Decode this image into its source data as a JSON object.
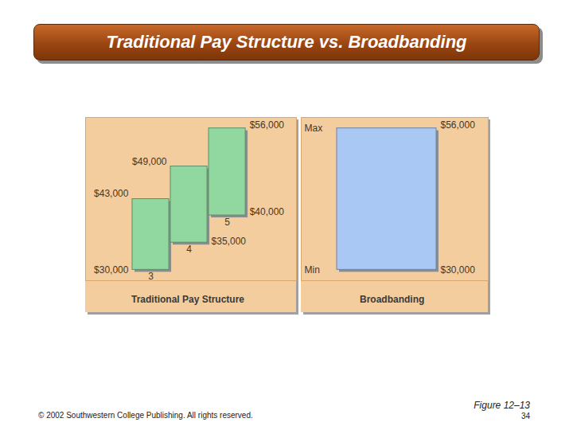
{
  "title": "Traditional Pay Structure vs. Broadbanding",
  "footer": "© 2002 Southwestern College Publishing. All rights reserved.",
  "figure": "Figure 12–13",
  "page": "34",
  "chart_data": [
    {
      "type": "range_bar",
      "title": "Traditional Pay Structure",
      "categories": [
        "3",
        "4",
        "5"
      ],
      "low": [
        30000,
        35000,
        40000
      ],
      "high": [
        43000,
        49000,
        56000
      ],
      "low_labels": [
        "$30,000",
        "$35,000",
        "$40,000"
      ],
      "high_labels": [
        "$43,000",
        "$49,000",
        "$56,000"
      ],
      "color": "#90d8a0",
      "ylim": [
        28000,
        58000
      ]
    },
    {
      "type": "range_bar",
      "title": "Broadbanding",
      "categories": [
        null
      ],
      "low": [
        30000
      ],
      "high": [
        56000
      ],
      "low_labels": [
        "$30,000"
      ],
      "high_labels": [
        "$56,000"
      ],
      "color": "#a9c8f4",
      "ylim": [
        28000,
        58000
      ],
      "yticks": [
        {
          "value": 30000,
          "label": "Min"
        },
        {
          "value": 56000,
          "label": "Max"
        }
      ],
      "tick_labels": "y"
    }
  ]
}
